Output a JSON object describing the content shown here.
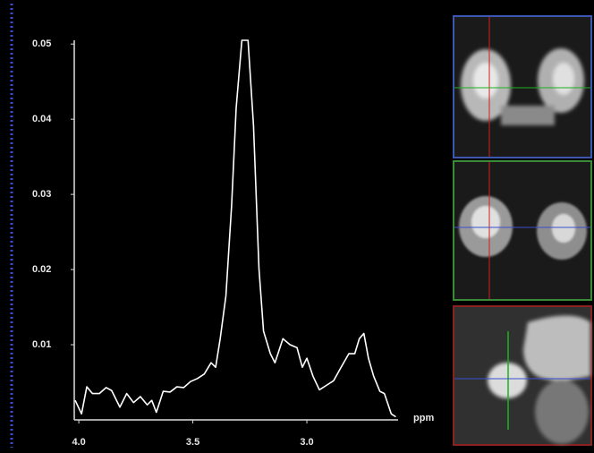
{
  "chart_data": {
    "type": "line",
    "x_label": "ppm",
    "x": [
      4.016,
      3.988,
      3.965,
      3.94,
      3.91,
      3.88,
      3.856,
      3.82,
      3.79,
      3.76,
      3.73,
      3.7,
      3.68,
      3.66,
      3.63,
      3.6,
      3.57,
      3.54,
      3.51,
      3.48,
      3.45,
      3.42,
      3.4,
      3.38,
      3.355,
      3.33,
      3.31,
      3.285,
      3.258,
      3.234,
      3.21,
      3.19,
      3.16,
      3.14,
      3.105,
      3.074,
      3.043,
      3.02,
      3.0,
      2.973,
      2.945,
      2.914,
      2.883,
      2.85,
      2.816,
      2.79,
      2.77,
      2.75,
      2.73,
      2.707,
      2.68,
      2.66,
      2.63,
      2.61
    ],
    "series": [
      {
        "color": "#ffffff",
        "values": [
          0.0026,
          0.0008,
          0.0044,
          0.0035,
          0.0035,
          0.0043,
          0.0039,
          0.0017,
          0.0035,
          0.0023,
          0.0031,
          0.002,
          0.0026,
          0.001,
          0.0038,
          0.0037,
          0.0044,
          0.0043,
          0.0051,
          0.0055,
          0.0061,
          0.0076,
          0.007,
          0.0108,
          0.0165,
          0.0285,
          0.0415,
          0.0505,
          0.0505,
          0.0392,
          0.0201,
          0.0118,
          0.0088,
          0.0076,
          0.0108,
          0.01,
          0.0096,
          0.007,
          0.0082,
          0.0058,
          0.004,
          0.0046,
          0.0052,
          0.007,
          0.0088,
          0.0088,
          0.0108,
          0.0115,
          0.0082,
          0.0058,
          0.0038,
          0.0035,
          0.0008,
          0.0004
        ]
      }
    ],
    "xlim": [
      4.02,
      2.6
    ],
    "xticks": [
      {
        "value": 4.0,
        "label": "4.0"
      },
      {
        "value": 3.5,
        "label": "3.5"
      },
      {
        "value": 3.0,
        "label": "3.0"
      }
    ],
    "ylim": [
      0,
      0.0505
    ],
    "yticks": [
      0.01,
      0.02,
      0.03,
      0.04,
      0.05
    ],
    "grid": false
  }
}
